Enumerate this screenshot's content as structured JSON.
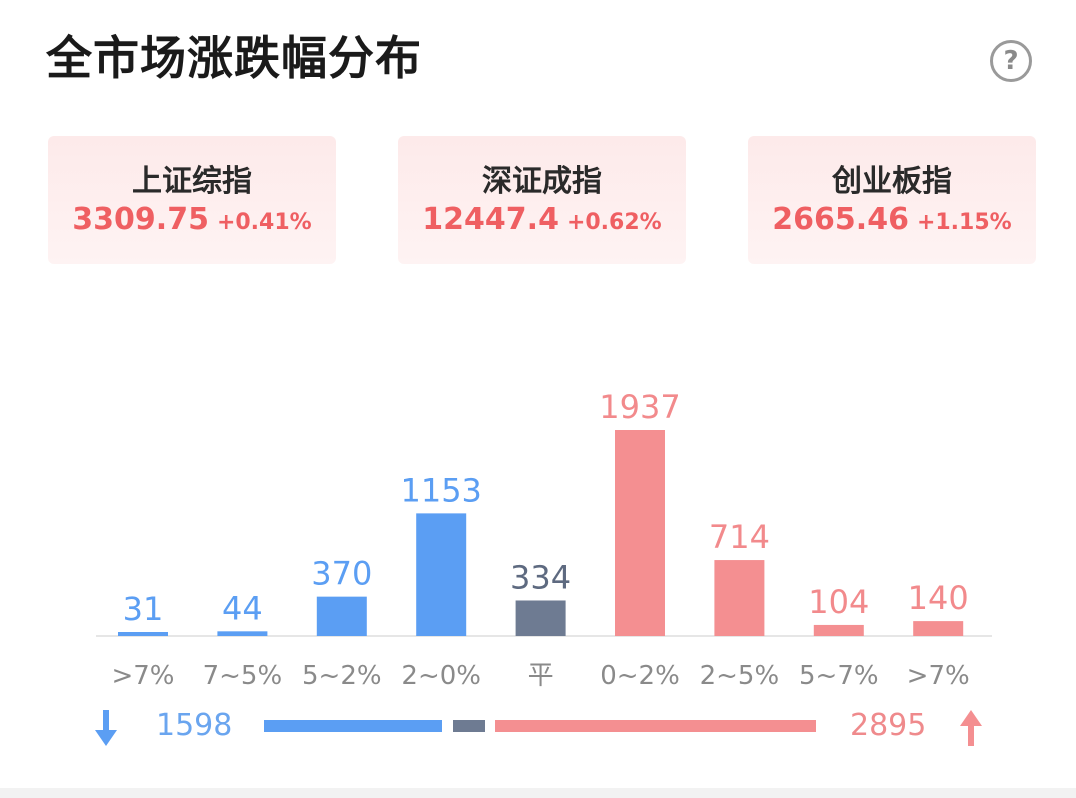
{
  "header": {
    "title": "全市场涨跌幅分布",
    "help_icon": "question-circle-icon",
    "help_glyph": "?"
  },
  "indices": [
    {
      "name": "上证综指",
      "price": "3309.75",
      "change": "+0.41%"
    },
    {
      "name": "深证成指",
      "price": "12447.4",
      "change": "+0.62%"
    },
    {
      "name": "创业板指",
      "price": "2665.46",
      "change": "+1.15%"
    }
  ],
  "colors": {
    "down": "#5b9ef3",
    "flat": "#6e7b92",
    "up": "#f48f91",
    "accent_red": "#ef5f62"
  },
  "chart_data": {
    "type": "bar",
    "categories": [
      ">7%",
      "7~5%",
      "5~2%",
      "2~0%",
      "平",
      "0~2%",
      "2~5%",
      "5~7%",
      ">7%"
    ],
    "values": [
      31,
      44,
      370,
      1153,
      334,
      1937,
      714,
      104,
      140
    ],
    "groups": [
      "down",
      "down",
      "down",
      "down",
      "flat",
      "up",
      "up",
      "up",
      "up"
    ],
    "ylim": [
      0,
      1937
    ],
    "grid": false,
    "legend": "none"
  },
  "summary": {
    "down_icon": "arrow-down-icon",
    "up_icon": "arrow-up-icon",
    "down_total": "1598",
    "up_total": "2895",
    "flat_total": 334
  }
}
